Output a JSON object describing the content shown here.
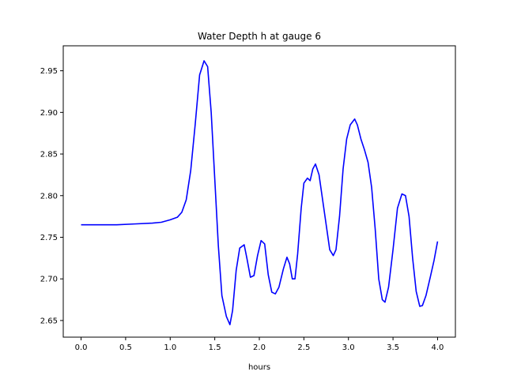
{
  "chart_data": {
    "type": "line",
    "title": "Water Depth h at gauge 6",
    "xlabel": "hours",
    "ylabel": "",
    "xlim": [
      -0.2,
      4.2
    ],
    "ylim": [
      2.63,
      2.98
    ],
    "grid": false,
    "legend": "none",
    "x_ticks": [
      {
        "value": 0.0,
        "label": "0.0"
      },
      {
        "value": 0.5,
        "label": "0.5"
      },
      {
        "value": 1.0,
        "label": "1.0"
      },
      {
        "value": 1.5,
        "label": "1.5"
      },
      {
        "value": 2.0,
        "label": "2.0"
      },
      {
        "value": 2.5,
        "label": "2.5"
      },
      {
        "value": 3.0,
        "label": "3.0"
      },
      {
        "value": 3.5,
        "label": "3.5"
      },
      {
        "value": 4.0,
        "label": "4.0"
      }
    ],
    "y_ticks": [
      {
        "value": 2.65,
        "label": "2.65"
      },
      {
        "value": 2.7,
        "label": "2.70"
      },
      {
        "value": 2.75,
        "label": "2.75"
      },
      {
        "value": 2.8,
        "label": "2.80"
      },
      {
        "value": 2.85,
        "label": "2.85"
      },
      {
        "value": 2.9,
        "label": "2.90"
      },
      {
        "value": 2.95,
        "label": "2.95"
      }
    ],
    "series": [
      {
        "color": "#0000ff",
        "points": [
          [
            0.0,
            2.765
          ],
          [
            0.2,
            2.765
          ],
          [
            0.4,
            2.765
          ],
          [
            0.6,
            2.766
          ],
          [
            0.8,
            2.767
          ],
          [
            0.9,
            2.768
          ],
          [
            1.0,
            2.771
          ],
          [
            1.08,
            2.774
          ],
          [
            1.13,
            2.78
          ],
          [
            1.18,
            2.795
          ],
          [
            1.23,
            2.83
          ],
          [
            1.28,
            2.885
          ],
          [
            1.33,
            2.945
          ],
          [
            1.38,
            2.962
          ],
          [
            1.42,
            2.955
          ],
          [
            1.46,
            2.9
          ],
          [
            1.5,
            2.82
          ],
          [
            1.54,
            2.74
          ],
          [
            1.58,
            2.68
          ],
          [
            1.63,
            2.655
          ],
          [
            1.67,
            2.645
          ],
          [
            1.7,
            2.662
          ],
          [
            1.74,
            2.71
          ],
          [
            1.78,
            2.737
          ],
          [
            1.83,
            2.741
          ],
          [
            1.86,
            2.725
          ],
          [
            1.9,
            2.702
          ],
          [
            1.94,
            2.704
          ],
          [
            1.98,
            2.728
          ],
          [
            2.02,
            2.746
          ],
          [
            2.06,
            2.742
          ],
          [
            2.1,
            2.705
          ],
          [
            2.14,
            2.684
          ],
          [
            2.18,
            2.682
          ],
          [
            2.22,
            2.69
          ],
          [
            2.27,
            2.712
          ],
          [
            2.31,
            2.726
          ],
          [
            2.34,
            2.718
          ],
          [
            2.37,
            2.7
          ],
          [
            2.4,
            2.7
          ],
          [
            2.43,
            2.73
          ],
          [
            2.47,
            2.785
          ],
          [
            2.5,
            2.815
          ],
          [
            2.54,
            2.821
          ],
          [
            2.57,
            2.818
          ],
          [
            2.6,
            2.832
          ],
          [
            2.63,
            2.838
          ],
          [
            2.67,
            2.825
          ],
          [
            2.71,
            2.795
          ],
          [
            2.75,
            2.765
          ],
          [
            2.79,
            2.735
          ],
          [
            2.83,
            2.728
          ],
          [
            2.86,
            2.735
          ],
          [
            2.9,
            2.775
          ],
          [
            2.94,
            2.832
          ],
          [
            2.98,
            2.868
          ],
          [
            3.02,
            2.885
          ],
          [
            3.07,
            2.892
          ],
          [
            3.1,
            2.885
          ],
          [
            3.14,
            2.868
          ],
          [
            3.18,
            2.855
          ],
          [
            3.22,
            2.84
          ],
          [
            3.26,
            2.81
          ],
          [
            3.3,
            2.76
          ],
          [
            3.34,
            2.7
          ],
          [
            3.38,
            2.675
          ],
          [
            3.41,
            2.672
          ],
          [
            3.45,
            2.69
          ],
          [
            3.5,
            2.735
          ],
          [
            3.55,
            2.785
          ],
          [
            3.6,
            2.802
          ],
          [
            3.64,
            2.8
          ],
          [
            3.68,
            2.775
          ],
          [
            3.72,
            2.725
          ],
          [
            3.76,
            2.685
          ],
          [
            3.8,
            2.667
          ],
          [
            3.83,
            2.668
          ],
          [
            3.87,
            2.68
          ],
          [
            3.92,
            2.703
          ],
          [
            3.96,
            2.722
          ],
          [
            4.0,
            2.745
          ]
        ]
      }
    ]
  }
}
